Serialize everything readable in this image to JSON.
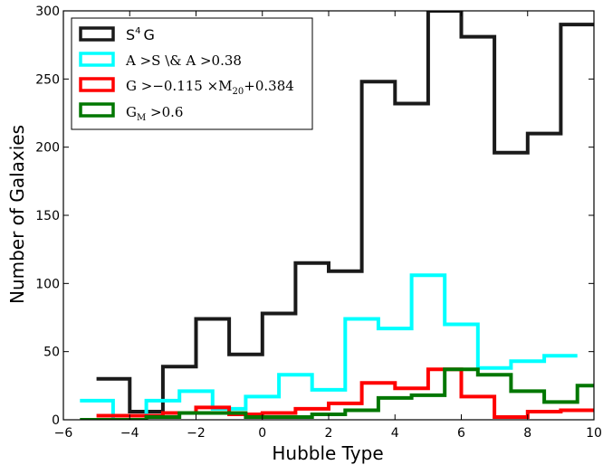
{
  "chart_data": {
    "type": "histogram-step",
    "xlabel": "Hubble Type",
    "ylabel": "Number of Galaxies",
    "xlim": [
      -6,
      10
    ],
    "ylim": [
      0,
      300
    ],
    "xticks": [
      -6,
      -4,
      -2,
      0,
      2,
      4,
      6,
      8,
      10
    ],
    "xtick_labels": [
      "−6",
      "−4",
      "−2",
      "0",
      "2",
      "4",
      "6",
      "8",
      "10"
    ],
    "yticks": [
      0,
      50,
      100,
      150,
      200,
      250,
      300
    ],
    "ytick_labels": [
      "0",
      "50",
      "100",
      "150",
      "200",
      "250",
      "300"
    ],
    "grid": false,
    "legend_position": "top-left",
    "series": [
      {
        "name": "S4G",
        "color": "#1a1a1a",
        "edges": [
          -5,
          -4,
          -3,
          -2,
          -1,
          0,
          1,
          2,
          3,
          4,
          5,
          6,
          7,
          8,
          9,
          10
        ],
        "values": [
          30,
          6,
          39,
          74,
          48,
          78,
          115,
          109,
          248,
          232,
          310,
          281,
          196,
          210,
          290
        ]
      },
      {
        "name": "A>S & A>0.38",
        "color": "#00ffff",
        "edges": [
          -5.5,
          -4.5,
          -3.5,
          -2.5,
          -1.5,
          -0.5,
          0.5,
          1.5,
          2.5,
          3.5,
          4.5,
          5.5,
          6.5,
          7.5,
          8.5,
          9.5
        ],
        "values": [
          14,
          0,
          14,
          21,
          8,
          17,
          33,
          22,
          74,
          67,
          106,
          70,
          38,
          43,
          47
        ]
      },
      {
        "name": "G>-0.115xM20+0.384",
        "color": "#ff0000",
        "edges": [
          -5,
          -4,
          -3,
          -2,
          -1,
          0,
          1,
          2,
          3,
          4,
          5,
          6,
          7,
          8,
          9,
          10
        ],
        "values": [
          3,
          3,
          5,
          9,
          4,
          5,
          8,
          12,
          27,
          23,
          37,
          17,
          2,
          6,
          7
        ]
      },
      {
        "name": "GM>0.6",
        "color": "#007700",
        "edges": [
          -5.5,
          -4.5,
          -3.5,
          -2.5,
          -1.5,
          -0.5,
          0.5,
          1.5,
          2.5,
          3.5,
          4.5,
          5.5,
          6.5,
          7.5,
          8.5,
          9.5,
          10
        ],
        "values": [
          0,
          0,
          2,
          5,
          5,
          2,
          2,
          4,
          7,
          16,
          18,
          37,
          33,
          21,
          13,
          25
        ]
      }
    ]
  },
  "legend": {
    "s4g_main": "S",
    "s4g_sup": "4",
    "s4g_tail": "G",
    "asym_text": "A >S \\& A >0.38",
    "gini_pre": "G >−0.115 ×M",
    "gini_sub": "20",
    "gini_post": "+0.384",
    "gm_main": "G",
    "gm_sub": "M",
    "gm_post": " >0.6"
  }
}
